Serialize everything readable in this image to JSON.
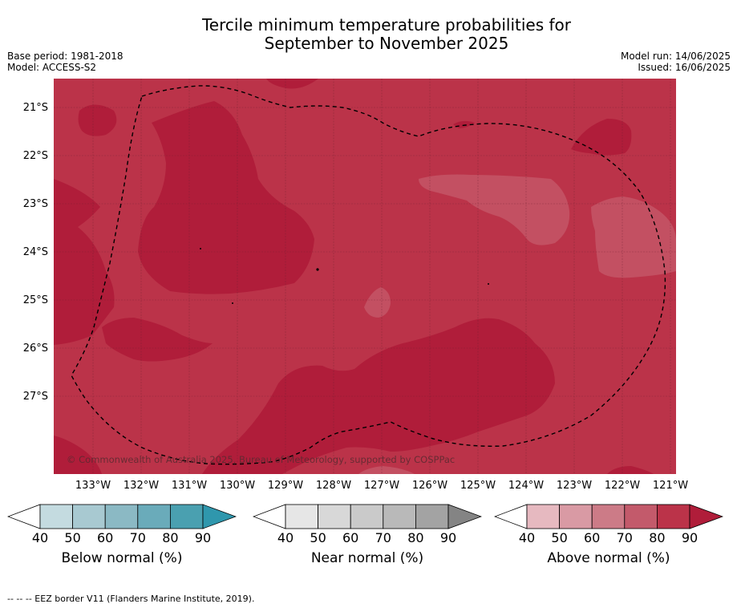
{
  "title_line1": "Tercile minimum temperature probabilities for",
  "title_line2": "September to November 2025",
  "meta_left": [
    "Base period: 1981-2018",
    "Model: ACCESS-S2"
  ],
  "meta_right": [
    "Model run: 14/06/2025",
    "Issued: 16/06/2025"
  ],
  "map": {
    "lat_labels": [
      "21°S",
      "22°S",
      "23°S",
      "24°S",
      "25°S",
      "26°S",
      "27°S"
    ],
    "lon_labels": [
      "133°W",
      "132°W",
      "131°W",
      "130°W",
      "129°W",
      "128°W",
      "127°W",
      "126°W",
      "125°W",
      "124°W",
      "123°W",
      "122°W",
      "121°W"
    ],
    "copyright": "© Commonwealth of Australia 2025, Bureau of Meteorology, supported by COSPPac",
    "colors": {
      "above_70_80": "#bb3349",
      "above_80_90": "#b01d3a",
      "above_60_70": "#c35062",
      "boundary": "#000000"
    }
  },
  "colorbars": [
    {
      "label": "Below normal (%)",
      "ticks": [
        "40",
        "50",
        "60",
        "70",
        "80",
        "90"
      ],
      "colors": [
        "#ffffff",
        "#c4dbe0",
        "#a8c9d1",
        "#8bb9c4",
        "#6aabba",
        "#4aa0b0",
        "#2f97ad"
      ]
    },
    {
      "label": "Near normal (%)",
      "ticks": [
        "40",
        "50",
        "60",
        "70",
        "80",
        "90"
      ],
      "colors": [
        "#ffffff",
        "#e6e6e6",
        "#d8d8d8",
        "#cacaca",
        "#b9b9b9",
        "#a3a3a3",
        "#848484"
      ]
    },
    {
      "label": "Above normal (%)",
      "ticks": [
        "40",
        "50",
        "60",
        "70",
        "80",
        "90"
      ],
      "colors": [
        "#ffffff",
        "#e6b9c0",
        "#d99aa4",
        "#cc7b87",
        "#c35a6b",
        "#bb3349",
        "#b01d3a"
      ]
    }
  ],
  "footer": "-- -- -- EEZ border V11 (Flanders Marine Institute, 2019)."
}
